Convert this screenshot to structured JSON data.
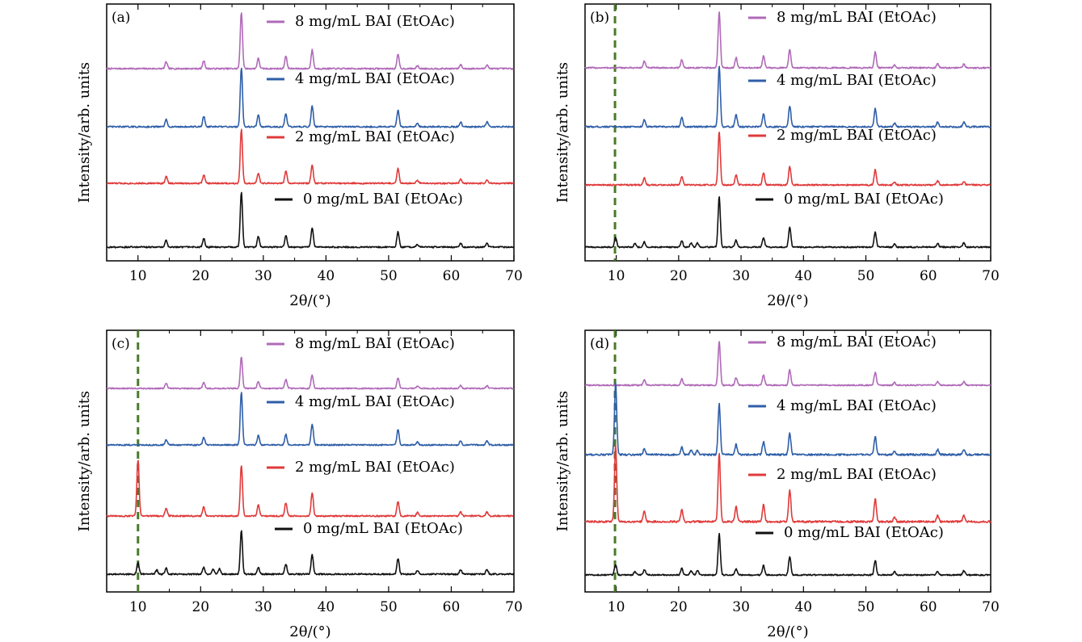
{
  "colors": {
    "0 mg/mL": "#111111",
    "2 mg/mL": "#e03a3a",
    "4 mg/mL": "#2e5ea8",
    "8 mg/mL": "#b06ab8",
    "guide": "#4a7a2a"
  },
  "chart_data": [
    {
      "type": "line",
      "panel_label": "(a)",
      "xlabel": "2θ/(°)",
      "ylabel": "Intensity/arb. units",
      "xlim": [
        5,
        70
      ],
      "xticks": [
        10,
        20,
        30,
        40,
        50,
        60,
        70
      ],
      "guide_line_x": null,
      "series": [
        {
          "name": "8 mg/mL BAI (EtOAc)",
          "key": "8 mg/mL",
          "peaks": [
            [
              14.5,
              0.12
            ],
            [
              20.5,
              0.14
            ],
            [
              26.5,
              1.0
            ],
            [
              29.2,
              0.18
            ],
            [
              33.6,
              0.22
            ],
            [
              37.8,
              0.33
            ],
            [
              51.5,
              0.25
            ],
            [
              54.6,
              0.05
            ],
            [
              61.5,
              0.07
            ],
            [
              65.7,
              0.07
            ]
          ]
        },
        {
          "name": "4 mg/mL BAI (EtOAc)",
          "key": "4 mg/mL",
          "peaks": [
            [
              14.5,
              0.12
            ],
            [
              20.5,
              0.18
            ],
            [
              26.5,
              1.0
            ],
            [
              29.2,
              0.2
            ],
            [
              33.6,
              0.22
            ],
            [
              37.8,
              0.35
            ],
            [
              51.5,
              0.28
            ],
            [
              54.6,
              0.06
            ],
            [
              61.5,
              0.08
            ],
            [
              65.7,
              0.08
            ]
          ]
        },
        {
          "name": "2 mg/mL BAI (EtOAc)",
          "key": "2 mg/mL",
          "peaks": [
            [
              14.5,
              0.12
            ],
            [
              20.5,
              0.15
            ],
            [
              26.5,
              0.95
            ],
            [
              29.2,
              0.18
            ],
            [
              33.6,
              0.22
            ],
            [
              37.8,
              0.32
            ],
            [
              51.5,
              0.27
            ],
            [
              54.6,
              0.05
            ],
            [
              61.5,
              0.07
            ],
            [
              65.7,
              0.06
            ]
          ]
        },
        {
          "name": "0 mg/mL BAI (EtOAc)",
          "key": "0 mg/mL",
          "peaks": [
            [
              14.5,
              0.12
            ],
            [
              20.5,
              0.15
            ],
            [
              26.5,
              0.95
            ],
            [
              29.2,
              0.18
            ],
            [
              33.6,
              0.2
            ],
            [
              37.8,
              0.33
            ],
            [
              51.5,
              0.27
            ],
            [
              54.6,
              0.05
            ],
            [
              61.5,
              0.07
            ],
            [
              65.7,
              0.06
            ]
          ]
        }
      ]
    },
    {
      "type": "line",
      "panel_label": "(b)",
      "xlabel": "2θ/(°)",
      "ylabel": "Intensity/arb. units",
      "xlim": [
        5,
        70
      ],
      "xticks": [
        10,
        20,
        30,
        40,
        50,
        60,
        70
      ],
      "guide_line_x": 9.8,
      "series": [
        {
          "name": "8 mg/mL BAI (EtOAc)",
          "key": "8 mg/mL",
          "peaks": [
            [
              14.5,
              0.12
            ],
            [
              20.5,
              0.14
            ],
            [
              26.5,
              1.0
            ],
            [
              29.2,
              0.18
            ],
            [
              33.6,
              0.22
            ],
            [
              37.8,
              0.33
            ],
            [
              51.5,
              0.28
            ],
            [
              54.6,
              0.05
            ],
            [
              61.5,
              0.07
            ],
            [
              65.7,
              0.07
            ]
          ]
        },
        {
          "name": "4 mg/mL BAI (EtOAc)",
          "key": "4 mg/mL",
          "peaks": [
            [
              14.5,
              0.12
            ],
            [
              20.5,
              0.16
            ],
            [
              26.5,
              1.0
            ],
            [
              29.2,
              0.2
            ],
            [
              33.6,
              0.22
            ],
            [
              37.8,
              0.35
            ],
            [
              51.5,
              0.3
            ],
            [
              54.6,
              0.06
            ],
            [
              61.5,
              0.08
            ],
            [
              65.7,
              0.08
            ]
          ]
        },
        {
          "name": "2 mg/mL BAI (EtOAc)",
          "key": "2 mg/mL",
          "peaks": [
            [
              14.5,
              0.12
            ],
            [
              20.5,
              0.15
            ],
            [
              26.5,
              0.95
            ],
            [
              29.2,
              0.18
            ],
            [
              33.6,
              0.22
            ],
            [
              37.8,
              0.32
            ],
            [
              51.5,
              0.27
            ],
            [
              54.6,
              0.05
            ],
            [
              61.5,
              0.07
            ],
            [
              65.7,
              0.06
            ]
          ]
        },
        {
          "name": "0 mg/mL BAI (EtOAc)",
          "key": "0 mg/mL",
          "peaks": [
            [
              9.9,
              0.18
            ],
            [
              13.0,
              0.07
            ],
            [
              14.5,
              0.1
            ],
            [
              20.5,
              0.12
            ],
            [
              22.0,
              0.08
            ],
            [
              23.0,
              0.08
            ],
            [
              26.5,
              0.95
            ],
            [
              29.2,
              0.13
            ],
            [
              33.6,
              0.18
            ],
            [
              37.8,
              0.37
            ],
            [
              51.5,
              0.28
            ],
            [
              54.6,
              0.06
            ],
            [
              61.5,
              0.07
            ],
            [
              65.7,
              0.08
            ]
          ]
        }
      ]
    },
    {
      "type": "line",
      "panel_label": "(c)",
      "xlabel": "2θ/(°)",
      "ylabel": "Intensity/arb. units",
      "xlim": [
        5,
        70
      ],
      "xticks": [
        10,
        20,
        30,
        40,
        50,
        60,
        70
      ],
      "guide_line_x": 10.0,
      "series": [
        {
          "name": "8 mg/mL BAI (EtOAc)",
          "key": "8 mg/mL",
          "peaks": [
            [
              14.5,
              0.1
            ],
            [
              20.5,
              0.12
            ],
            [
              26.5,
              0.65
            ],
            [
              29.2,
              0.15
            ],
            [
              33.6,
              0.18
            ],
            [
              37.8,
              0.28
            ],
            [
              51.5,
              0.22
            ],
            [
              54.6,
              0.05
            ],
            [
              61.5,
              0.06
            ],
            [
              65.7,
              0.06
            ]
          ]
        },
        {
          "name": "4 mg/mL BAI (EtOAc)",
          "key": "4 mg/mL",
          "peaks": [
            [
              14.5,
              0.1
            ],
            [
              20.5,
              0.14
            ],
            [
              26.5,
              1.0
            ],
            [
              29.2,
              0.18
            ],
            [
              33.6,
              0.2
            ],
            [
              37.8,
              0.4
            ],
            [
              51.5,
              0.3
            ],
            [
              54.6,
              0.06
            ],
            [
              61.5,
              0.08
            ],
            [
              65.7,
              0.08
            ]
          ]
        },
        {
          "name": "2 mg/mL BAI (EtOAc)",
          "key": "2 mg/mL",
          "peaks": [
            [
              10.0,
              1.0
            ],
            [
              14.5,
              0.14
            ],
            [
              20.5,
              0.16
            ],
            [
              26.5,
              0.9
            ],
            [
              29.2,
              0.2
            ],
            [
              33.6,
              0.24
            ],
            [
              37.8,
              0.42
            ],
            [
              51.5,
              0.26
            ],
            [
              54.6,
              0.06
            ],
            [
              61.5,
              0.07
            ],
            [
              65.7,
              0.07
            ]
          ]
        },
        {
          "name": "0 mg/mL BAI (EtOAc)",
          "key": "0 mg/mL",
          "peaks": [
            [
              10.0,
              0.2
            ],
            [
              13.0,
              0.07
            ],
            [
              14.5,
              0.1
            ],
            [
              20.5,
              0.12
            ],
            [
              22.0,
              0.08
            ],
            [
              23.0,
              0.09
            ],
            [
              26.5,
              0.75
            ],
            [
              29.2,
              0.12
            ],
            [
              33.6,
              0.18
            ],
            [
              37.8,
              0.33
            ],
            [
              51.5,
              0.27
            ],
            [
              54.6,
              0.06
            ],
            [
              61.5,
              0.07
            ],
            [
              65.7,
              0.08
            ]
          ]
        }
      ]
    },
    {
      "type": "line",
      "panel_label": "(d)",
      "xlabel": "2θ/(°)",
      "ylabel": "Intensity/arb. units",
      "xlim": [
        5,
        70
      ],
      "xticks": [
        10,
        20,
        30,
        40,
        50,
        60,
        70
      ],
      "guide_line_x": 9.8,
      "series": [
        {
          "name": "8 mg/mL BAI (EtOAc)",
          "key": "8 mg/mL",
          "peaks": [
            [
              14.5,
              0.1
            ],
            [
              20.5,
              0.12
            ],
            [
              26.5,
              0.85
            ],
            [
              29.2,
              0.15
            ],
            [
              33.6,
              0.2
            ],
            [
              37.8,
              0.3
            ],
            [
              51.5,
              0.25
            ],
            [
              54.6,
              0.05
            ],
            [
              61.5,
              0.07
            ],
            [
              65.7,
              0.07
            ]
          ]
        },
        {
          "name": "4 mg/mL BAI (EtOAc)",
          "key": "4 mg/mL",
          "peaks": [
            [
              9.9,
              1.0
            ],
            [
              14.5,
              0.08
            ],
            [
              20.5,
              0.1
            ],
            [
              22.0,
              0.06
            ],
            [
              23.0,
              0.06
            ],
            [
              26.5,
              0.7
            ],
            [
              29.2,
              0.14
            ],
            [
              33.6,
              0.18
            ],
            [
              37.8,
              0.3
            ],
            [
              51.5,
              0.25
            ],
            [
              54.6,
              0.05
            ],
            [
              61.5,
              0.07
            ],
            [
              65.7,
              0.07
            ]
          ]
        },
        {
          "name": "2 mg/mL BAI (EtOAc)",
          "key": "2 mg/mL",
          "peaks": [
            [
              9.9,
              1.0
            ],
            [
              14.5,
              0.14
            ],
            [
              20.5,
              0.15
            ],
            [
              26.5,
              0.9
            ],
            [
              29.2,
              0.2
            ],
            [
              33.6,
              0.22
            ],
            [
              37.8,
              0.42
            ],
            [
              51.5,
              0.3
            ],
            [
              54.6,
              0.06
            ],
            [
              61.5,
              0.08
            ],
            [
              65.7,
              0.08
            ]
          ]
        },
        {
          "name": "0 mg/mL BAI (EtOAc)",
          "key": "0 mg/mL",
          "peaks": [
            [
              9.9,
              0.2
            ],
            [
              13.0,
              0.07
            ],
            [
              14.5,
              0.1
            ],
            [
              20.5,
              0.12
            ],
            [
              22.0,
              0.08
            ],
            [
              23.0,
              0.09
            ],
            [
              26.5,
              0.78
            ],
            [
              29.2,
              0.12
            ],
            [
              33.6,
              0.18
            ],
            [
              37.8,
              0.35
            ],
            [
              51.5,
              0.27
            ],
            [
              54.6,
              0.06
            ],
            [
              61.5,
              0.07
            ],
            [
              65.7,
              0.08
            ]
          ]
        }
      ]
    }
  ]
}
